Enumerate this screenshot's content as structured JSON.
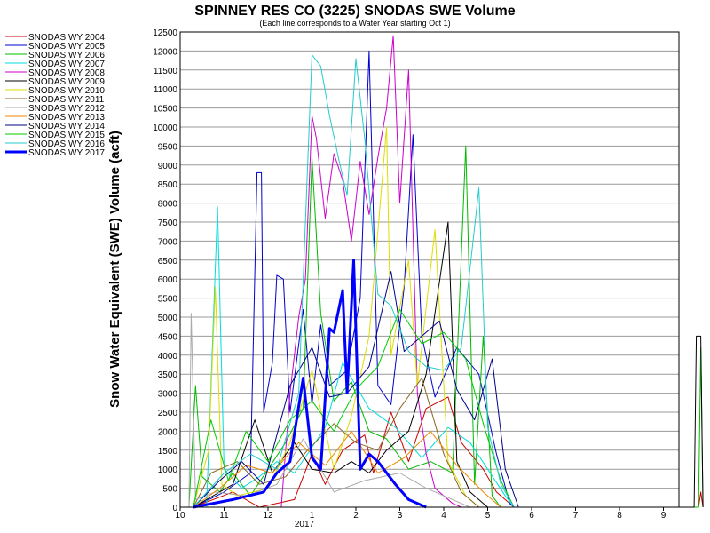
{
  "chart_data": {
    "type": "line",
    "title": "SPINNEY RES CO (3225) SNODAS SWE Volume",
    "subtitle": "(Each line corresponds to a Water Year starting Oct 1)",
    "ylabel": "Snow Water Equivalent (SWE) Volume (acft)",
    "xlabel": "",
    "ylim": [
      0,
      12500
    ],
    "y_ticks": [
      0,
      500,
      1000,
      1500,
      2000,
      2500,
      3000,
      3500,
      4000,
      4500,
      5000,
      5500,
      6000,
      6500,
      7000,
      7500,
      8000,
      8500,
      9000,
      9500,
      10000,
      10500,
      11000,
      11500,
      12000,
      12500
    ],
    "x_ticks": [
      "10",
      "11",
      "12",
      "1",
      "2",
      "3",
      "4",
      "5",
      "6",
      "7",
      "8",
      "9"
    ],
    "x_year_label": "2017",
    "grid": "horizontal",
    "legend_position": "left",
    "series": [
      {
        "name": "SNODAS WY 2004",
        "color": "#cc0000",
        "width": 1,
        "points": [
          [
            0.3,
            0
          ],
          [
            1.2,
            400
          ],
          [
            1.8,
            0
          ],
          [
            2.6,
            200
          ],
          [
            3.0,
            1400
          ],
          [
            3.3,
            600
          ],
          [
            3.7,
            1500
          ],
          [
            4.2,
            1900
          ],
          [
            4.4,
            900
          ],
          [
            4.8,
            2500
          ],
          [
            5.2,
            1200
          ],
          [
            5.6,
            2600
          ],
          [
            6.1,
            2900
          ],
          [
            6.4,
            1700
          ],
          [
            6.9,
            1000
          ],
          [
            7.2,
            400
          ],
          [
            7.6,
            0
          ],
          [
            11.8,
            0
          ],
          [
            11.85,
            400
          ],
          [
            11.9,
            0
          ]
        ]
      },
      {
        "name": "SNODAS WY 2005",
        "color": "#0000cc",
        "width": 1,
        "points": [
          [
            0.3,
            0
          ],
          [
            1.0,
            400
          ],
          [
            1.6,
            900
          ],
          [
            1.75,
            8800
          ],
          [
            1.85,
            8800
          ],
          [
            1.9,
            2500
          ],
          [
            2.1,
            3800
          ],
          [
            2.2,
            6100
          ],
          [
            2.35,
            6000
          ],
          [
            2.5,
            2500
          ],
          [
            2.8,
            5200
          ],
          [
            3.0,
            2700
          ],
          [
            3.2,
            4800
          ],
          [
            3.4,
            3200
          ],
          [
            3.8,
            3600
          ],
          [
            4.1,
            5500
          ],
          [
            4.3,
            12000
          ],
          [
            4.5,
            3200
          ],
          [
            4.8,
            2700
          ],
          [
            5.1,
            5800
          ],
          [
            5.3,
            9800
          ],
          [
            5.5,
            4500
          ],
          [
            5.8,
            2900
          ],
          [
            6.3,
            4200
          ],
          [
            6.8,
            3500
          ],
          [
            7.2,
            1400
          ],
          [
            7.5,
            100
          ],
          [
            7.6,
            0
          ]
        ]
      },
      {
        "name": "SNODAS WY 2006",
        "color": "#00bb00",
        "width": 1,
        "points": [
          [
            0.2,
            0
          ],
          [
            0.35,
            3200
          ],
          [
            0.5,
            800
          ],
          [
            0.9,
            400
          ],
          [
            1.2,
            900
          ],
          [
            1.6,
            300
          ],
          [
            2.0,
            1000
          ],
          [
            2.4,
            1700
          ],
          [
            2.8,
            2600
          ],
          [
            3.0,
            9200
          ],
          [
            3.2,
            5100
          ],
          [
            3.5,
            2800
          ],
          [
            3.9,
            3300
          ],
          [
            4.3,
            2000
          ],
          [
            4.7,
            1800
          ],
          [
            5.2,
            1000
          ],
          [
            5.7,
            1200
          ],
          [
            6.2,
            900
          ],
          [
            6.5,
            9500
          ],
          [
            6.7,
            600
          ],
          [
            6.9,
            4500
          ],
          [
            7.1,
            300
          ],
          [
            7.3,
            0
          ],
          [
            11.8,
            0
          ],
          [
            11.85,
            4200
          ],
          [
            11.9,
            0
          ]
        ]
      },
      {
        "name": "SNODAS WY 2007",
        "color": "#00dddd",
        "width": 1,
        "points": [
          [
            0.6,
            0
          ],
          [
            0.85,
            7900
          ],
          [
            1.0,
            1000
          ],
          [
            1.4,
            500
          ],
          [
            1.8,
            800
          ],
          [
            2.2,
            1200
          ],
          [
            2.6,
            900
          ],
          [
            2.9,
            1400
          ],
          [
            3.3,
            2100
          ],
          [
            3.7,
            3800
          ],
          [
            4.3,
            2600
          ],
          [
            4.9,
            2100
          ],
          [
            5.5,
            1300
          ],
          [
            6.1,
            2100
          ],
          [
            6.6,
            1700
          ],
          [
            7.0,
            1000
          ],
          [
            7.4,
            300
          ],
          [
            7.6,
            0
          ]
        ]
      },
      {
        "name": "SNODAS WY 2008",
        "color": "#cc00cc",
        "width": 1,
        "points": [
          [
            2.3,
            0
          ],
          [
            2.5,
            3000
          ],
          [
            2.7,
            5000
          ],
          [
            2.85,
            6000
          ],
          [
            3.0,
            10300
          ],
          [
            3.1,
            9700
          ],
          [
            3.3,
            7600
          ],
          [
            3.5,
            9300
          ],
          [
            3.7,
            8600
          ],
          [
            3.9,
            7000
          ],
          [
            4.1,
            9100
          ],
          [
            4.3,
            7700
          ],
          [
            4.5,
            9200
          ],
          [
            4.7,
            10500
          ],
          [
            4.85,
            12400
          ],
          [
            5.0,
            8000
          ],
          [
            5.2,
            11500
          ],
          [
            5.4,
            3000
          ],
          [
            5.6,
            1400
          ],
          [
            5.8,
            500
          ],
          [
            6.2,
            100
          ],
          [
            6.4,
            0
          ]
        ]
      },
      {
        "name": "SNODAS WY 2009",
        "color": "#000000",
        "width": 1,
        "points": [
          [
            0.3,
            0
          ],
          [
            1.2,
            600
          ],
          [
            1.7,
            2300
          ],
          [
            2.1,
            900
          ],
          [
            2.6,
            1700
          ],
          [
            3.0,
            1000
          ],
          [
            3.5,
            900
          ],
          [
            3.9,
            1200
          ],
          [
            4.3,
            900
          ],
          [
            4.7,
            1500
          ],
          [
            5.2,
            2000
          ],
          [
            5.6,
            3500
          ],
          [
            6.1,
            7500
          ],
          [
            6.3,
            1200
          ],
          [
            6.6,
            400
          ],
          [
            6.9,
            100
          ],
          [
            7.0,
            0
          ],
          [
            11.7,
            0
          ],
          [
            11.75,
            4500
          ],
          [
            11.85,
            4500
          ],
          [
            11.9,
            0
          ]
        ]
      },
      {
        "name": "SNODAS WY 2010",
        "color": "#dddd00",
        "width": 1,
        "points": [
          [
            0.3,
            0
          ],
          [
            0.65,
            1500
          ],
          [
            0.8,
            5800
          ],
          [
            0.95,
            600
          ],
          [
            1.3,
            300
          ],
          [
            2.0,
            500
          ],
          [
            2.5,
            1700
          ],
          [
            3.0,
            3600
          ],
          [
            3.5,
            1000
          ],
          [
            3.9,
            2400
          ],
          [
            4.3,
            4500
          ],
          [
            4.7,
            10000
          ],
          [
            4.8,
            4000
          ],
          [
            5.2,
            6500
          ],
          [
            5.4,
            3200
          ],
          [
            5.8,
            7300
          ],
          [
            6.1,
            1200
          ],
          [
            6.5,
            300
          ],
          [
            6.8,
            0
          ]
        ]
      },
      {
        "name": "SNODAS WY 2011",
        "color": "#886622",
        "width": 1,
        "points": [
          [
            0.3,
            0
          ],
          [
            0.7,
            900
          ],
          [
            1.3,
            1200
          ],
          [
            1.8,
            600
          ],
          [
            2.4,
            800
          ],
          [
            2.9,
            1500
          ],
          [
            3.5,
            2200
          ],
          [
            4.0,
            1700
          ],
          [
            4.5,
            1500
          ],
          [
            5.0,
            2600
          ],
          [
            5.5,
            3400
          ],
          [
            6.0,
            1400
          ],
          [
            6.4,
            400
          ],
          [
            6.8,
            0
          ]
        ]
      },
      {
        "name": "SNODAS WY 2012",
        "color": "#aaaaaa",
        "width": 1,
        "points": [
          [
            0.2,
            0
          ],
          [
            0.25,
            5100
          ],
          [
            0.35,
            200
          ],
          [
            0.8,
            400
          ],
          [
            1.5,
            300
          ],
          [
            2.2,
            600
          ],
          [
            2.8,
            1800
          ],
          [
            3.5,
            400
          ],
          [
            4.2,
            700
          ],
          [
            5.0,
            900
          ],
          [
            5.6,
            500
          ],
          [
            6.2,
            200
          ],
          [
            6.6,
            0
          ]
        ]
      },
      {
        "name": "SNODAS WY 2013",
        "color": "#ee8800",
        "width": 1,
        "points": [
          [
            0.3,
            0
          ],
          [
            0.9,
            500
          ],
          [
            1.5,
            1100
          ],
          [
            2.1,
            900
          ],
          [
            2.7,
            1700
          ],
          [
            3.3,
            1100
          ],
          [
            3.9,
            2000
          ],
          [
            4.5,
            900
          ],
          [
            5.1,
            1300
          ],
          [
            5.7,
            2000
          ],
          [
            6.3,
            1100
          ],
          [
            6.9,
            400
          ],
          [
            7.3,
            0
          ]
        ]
      },
      {
        "name": "SNODAS WY 2014",
        "color": "#000088",
        "width": 1,
        "points": [
          [
            0.3,
            0
          ],
          [
            0.9,
            700
          ],
          [
            1.4,
            1200
          ],
          [
            1.9,
            600
          ],
          [
            2.5,
            3200
          ],
          [
            3.0,
            4200
          ],
          [
            3.4,
            2900
          ],
          [
            3.8,
            3000
          ],
          [
            4.3,
            3700
          ],
          [
            4.8,
            6200
          ],
          [
            5.1,
            4100
          ],
          [
            5.5,
            4500
          ],
          [
            5.9,
            4900
          ],
          [
            6.3,
            3100
          ],
          [
            6.7,
            2300
          ],
          [
            7.1,
            3900
          ],
          [
            7.4,
            1000
          ],
          [
            7.7,
            0
          ]
        ]
      },
      {
        "name": "SNODAS WY 2015",
        "color": "#00cc00",
        "width": 1,
        "points": [
          [
            0.3,
            0
          ],
          [
            0.7,
            2300
          ],
          [
            1.1,
            700
          ],
          [
            1.5,
            2000
          ],
          [
            2.0,
            1200
          ],
          [
            2.5,
            2300
          ],
          [
            3.0,
            2800
          ],
          [
            3.5,
            2000
          ],
          [
            4.0,
            3100
          ],
          [
            4.5,
            3700
          ],
          [
            5.0,
            5200
          ],
          [
            5.5,
            4300
          ],
          [
            6.0,
            4600
          ],
          [
            6.5,
            3900
          ],
          [
            6.9,
            2200
          ],
          [
            7.3,
            700
          ],
          [
            7.6,
            0
          ]
        ]
      },
      {
        "name": "SNODAS WY 2016",
        "color": "#22cccc",
        "width": 1,
        "points": [
          [
            0.3,
            0
          ],
          [
            1.0,
            900
          ],
          [
            1.6,
            1400
          ],
          [
            2.2,
            1000
          ],
          [
            2.7,
            3000
          ],
          [
            3.0,
            11900
          ],
          [
            3.2,
            11600
          ],
          [
            3.4,
            10300
          ],
          [
            3.6,
            9200
          ],
          [
            3.8,
            8200
          ],
          [
            4.0,
            11800
          ],
          [
            4.2,
            9700
          ],
          [
            4.5,
            5600
          ],
          [
            4.8,
            5300
          ],
          [
            5.2,
            4100
          ],
          [
            5.6,
            3700
          ],
          [
            6.0,
            3600
          ],
          [
            6.4,
            4200
          ],
          [
            6.8,
            8400
          ],
          [
            7.0,
            2100
          ],
          [
            7.3,
            600
          ],
          [
            7.6,
            0
          ]
        ]
      },
      {
        "name": "SNODAS WY 2017",
        "color": "#0000ff",
        "width": 3,
        "points": [
          [
            0.3,
            0
          ],
          [
            1.2,
            200
          ],
          [
            1.9,
            400
          ],
          [
            2.2,
            900
          ],
          [
            2.5,
            1200
          ],
          [
            2.8,
            3400
          ],
          [
            3.0,
            1300
          ],
          [
            3.2,
            1000
          ],
          [
            3.4,
            4700
          ],
          [
            3.5,
            4600
          ],
          [
            3.7,
            5700
          ],
          [
            3.8,
            3000
          ],
          [
            3.95,
            6500
          ],
          [
            4.1,
            1000
          ],
          [
            4.3,
            1400
          ],
          [
            4.5,
            1200
          ],
          [
            4.9,
            600
          ],
          [
            5.2,
            200
          ],
          [
            5.6,
            0
          ]
        ]
      }
    ]
  }
}
